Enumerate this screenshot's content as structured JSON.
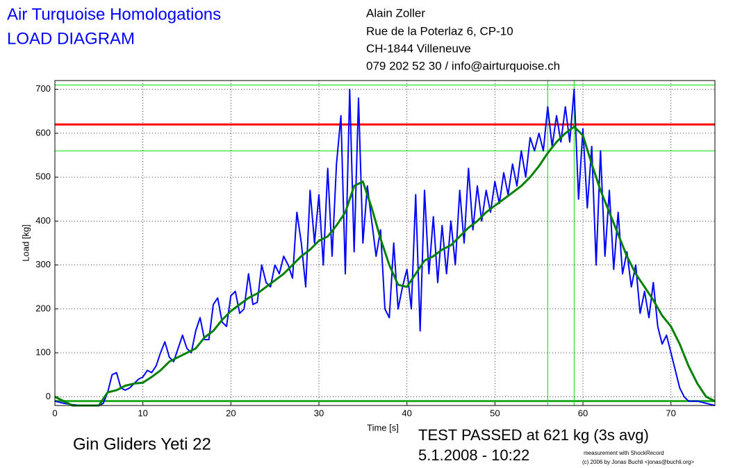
{
  "chart_data": {
    "type": "line",
    "title": "Air Turquoise Homologations",
    "subtitle": "LOAD DIAGRAM",
    "address": [
      "Alain Zoller",
      "Rue de la Poterlaz 6, CP-10",
      "CH-1844 Villeneuve",
      "079 202 52 30 / info@airturquoise.ch"
    ],
    "xlabel": "Time [s]",
    "ylabel": "Load [kg]",
    "glider": "Gin Gliders Yeti 22",
    "result": "TEST PASSED at 621 kg (3s avg)",
    "date": "5.1.2008 - 10:22",
    "credits": [
      "measurement with ShockRecord",
      "(c) 2006 by Jonas Buchli <jonas@buchli.org>"
    ],
    "xlim": [
      0,
      75
    ],
    "ylim": [
      -20,
      720
    ],
    "xticks": [
      0,
      10,
      20,
      30,
      40,
      50,
      60,
      70
    ],
    "yticks": [
      0,
      100,
      200,
      300,
      400,
      500,
      600,
      700
    ],
    "grid": true,
    "series": [
      {
        "color": "#0000ff",
        "x": [
          0,
          1,
          2,
          3,
          4,
          5,
          5.5,
          6,
          6.5,
          7,
          7.5,
          8,
          8.5,
          9,
          9.5,
          10,
          10.5,
          11,
          11.5,
          12,
          12.5,
          13,
          13.5,
          14,
          14.5,
          15,
          15.5,
          16,
          16.5,
          17,
          17.5,
          18,
          18.5,
          19,
          19.5,
          20,
          20.5,
          21,
          21.5,
          22,
          22.5,
          23,
          23.5,
          24,
          24.5,
          25,
          25.5,
          26,
          26.5,
          27,
          27.5,
          28,
          28.5,
          29,
          29.5,
          30,
          30.5,
          31,
          31.5,
          32,
          32.5,
          33,
          33.5,
          34,
          34.5,
          35,
          35.5,
          36,
          36.5,
          37,
          37.5,
          38,
          38.5,
          39,
          39.5,
          40,
          40.5,
          41,
          41.5,
          42,
          42.5,
          43,
          43.5,
          44,
          44.5,
          45,
          45.5,
          46,
          46.5,
          47,
          47.5,
          48,
          48.5,
          49,
          49.5,
          50,
          50.5,
          51,
          51.5,
          52,
          52.5,
          53,
          53.5,
          54,
          54.5,
          55,
          55.5,
          56,
          56.5,
          57,
          57.5,
          58,
          58.5,
          59,
          59.5,
          60,
          60.5,
          61,
          61.5,
          62,
          62.5,
          63,
          63.5,
          64,
          64.5,
          65,
          65.5,
          66,
          66.5,
          67,
          67.5,
          68,
          68.5,
          69,
          69.5,
          70,
          70.5,
          71,
          71.5,
          72,
          73,
          74,
          75
        ],
        "values": [
          -10,
          -15,
          -18,
          -20,
          -20,
          -20,
          -15,
          10,
          50,
          55,
          20,
          15,
          20,
          30,
          40,
          45,
          60,
          55,
          70,
          100,
          125,
          90,
          80,
          110,
          140,
          110,
          100,
          150,
          180,
          130,
          130,
          210,
          225,
          170,
          160,
          230,
          240,
          190,
          200,
          280,
          210,
          215,
          300,
          260,
          250,
          300,
          280,
          320,
          300,
          270,
          420,
          350,
          250,
          470,
          350,
          460,
          300,
          520,
          320,
          530,
          640,
          280,
          700,
          330,
          680,
          350,
          480,
          400,
          320,
          380,
          200,
          180,
          350,
          200,
          250,
          290,
          200,
          460,
          150,
          470,
          280,
          410,
          260,
          390,
          280,
          400,
          300,
          470,
          350,
          520,
          380,
          480,
          400,
          470,
          420,
          490,
          440,
          510,
          460,
          530,
          480,
          560,
          500,
          590,
          560,
          600,
          560,
          660,
          570,
          640,
          580,
          660,
          580,
          700,
          450,
          610,
          430,
          570,
          300,
          560,
          320,
          470,
          290,
          420,
          280,
          330,
          250,
          300,
          190,
          240,
          180,
          260,
          160,
          120,
          140,
          100,
          60,
          20,
          0,
          -10,
          -10,
          -15,
          -20
        ]
      },
      {
        "color": "#008000",
        "x": [
          0,
          1,
          2,
          3,
          4,
          5,
          6,
          7,
          8,
          9,
          10,
          11,
          12,
          13,
          14,
          15,
          16,
          17,
          18,
          19,
          20,
          21,
          22,
          23,
          24,
          25,
          26,
          27,
          28,
          29,
          30,
          31,
          32,
          33,
          34,
          35,
          36,
          37,
          38,
          39,
          40,
          41,
          42,
          43,
          44,
          45,
          46,
          47,
          48,
          49,
          50,
          51,
          52,
          53,
          54,
          55,
          56,
          57,
          58,
          59,
          60,
          61,
          62,
          63,
          64,
          65,
          66,
          67,
          68,
          69,
          70,
          71,
          72,
          73,
          74,
          75
        ],
        "values": [
          0,
          -10,
          -20,
          -20,
          -20,
          -20,
          10,
          15,
          25,
          30,
          32,
          45,
          60,
          80,
          90,
          100,
          110,
          135,
          150,
          175,
          195,
          210,
          225,
          235,
          250,
          265,
          280,
          300,
          320,
          335,
          355,
          365,
          390,
          420,
          480,
          490,
          430,
          360,
          300,
          255,
          250,
          280,
          310,
          320,
          335,
          345,
          365,
          385,
          400,
          420,
          435,
          450,
          465,
          480,
          500,
          525,
          555,
          580,
          600,
          615,
          595,
          530,
          470,
          420,
          370,
          320,
          280,
          250,
          220,
          185,
          160,
          120,
          70,
          30,
          0,
          -10
        ]
      }
    ],
    "hlines": [
      {
        "value": 710,
        "color": "#00dd00"
      },
      {
        "value": 620,
        "color": "#ff0000"
      },
      {
        "value": 560,
        "color": "#00dd00"
      },
      {
        "value": -10,
        "color": "#22aa22"
      }
    ],
    "vlines": [
      {
        "value": 56,
        "color": "#00dd00"
      },
      {
        "value": 59,
        "color": "#00dd00"
      }
    ]
  }
}
